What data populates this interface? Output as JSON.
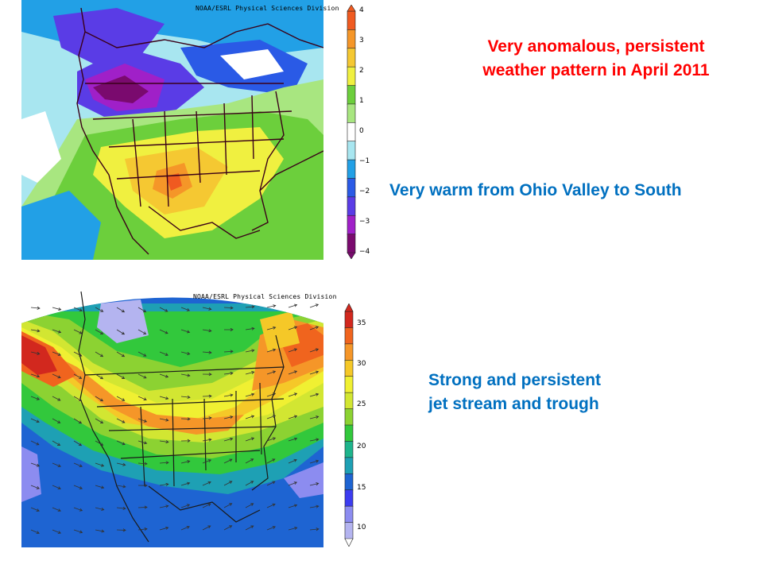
{
  "colors": {
    "caption_red": "#ff0000",
    "caption_blue": "#0070c0",
    "anomaly_scale": [
      "#7a0a6e",
      "#a020c8",
      "#5a3ce6",
      "#2a5ae6",
      "#22a0e6",
      "#a8e6f0",
      "#ffffff",
      "#a8e680",
      "#6ccf3c",
      "#f0f040",
      "#f5c832",
      "#f59628",
      "#f05a20"
    ],
    "wind_scale": [
      "#b4b4f0",
      "#8c8cf0",
      "#3c3cf0",
      "#1e64d2",
      "#1ea0b4",
      "#1eb48c",
      "#32c83c",
      "#8cd232",
      "#d2e632",
      "#f0f032",
      "#f5c828",
      "#f59628",
      "#f0641e",
      "#d2281e"
    ]
  },
  "top_panel": {
    "credit": "NOAA/ESRL Physical Sciences Division",
    "colorbar_ticks": [
      "4",
      "3",
      "2",
      "1",
      "0",
      "−1",
      "−2",
      "−3",
      "−4"
    ]
  },
  "bottom_panel": {
    "credit": "NOAA/ESRL Physical Sciences Division",
    "colorbar_ticks": [
      "35",
      "30",
      "25",
      "20",
      "15",
      "10"
    ]
  },
  "captions": {
    "headline_line1": "Very anomalous, persistent",
    "headline_line2": "weather pattern in April 2011",
    "warm_note": "Very warm from Ohio Valley to South",
    "jet_line1": "Strong and persistent",
    "jet_line2": "jet stream and trough"
  }
}
